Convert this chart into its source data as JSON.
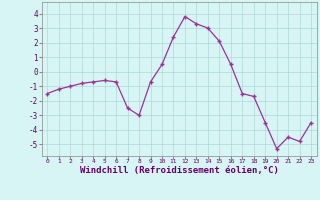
{
  "x": [
    0,
    1,
    2,
    3,
    4,
    5,
    6,
    7,
    8,
    9,
    10,
    11,
    12,
    13,
    14,
    15,
    16,
    17,
    18,
    19,
    20,
    21,
    22,
    23
  ],
  "y": [
    -1.5,
    -1.2,
    -1.0,
    -0.8,
    -0.7,
    -0.6,
    -0.7,
    -2.5,
    -3.0,
    -0.7,
    0.5,
    2.4,
    3.8,
    3.3,
    3.0,
    2.1,
    0.5,
    -1.5,
    -1.7,
    -3.5,
    -5.3,
    -4.5,
    -4.8,
    -3.5
  ],
  "line_color": "#993399",
  "marker": "+",
  "markersize": 3,
  "bg_color": "#d8f5f5",
  "grid_color": "#b0d8d8",
  "xlabel": "Windchill (Refroidissement éolien,°C)",
  "xlabel_fontsize": 6.5,
  "ylabel_ticks": [
    -5,
    -4,
    -3,
    -2,
    -1,
    0,
    1,
    2,
    3,
    4
  ],
  "xlim": [
    -0.5,
    23.5
  ],
  "ylim": [
    -5.8,
    4.8
  ],
  "xtick_labels": [
    "0",
    "1",
    "2",
    "3",
    "4",
    "5",
    "6",
    "7",
    "8",
    "9",
    "10",
    "11",
    "12",
    "13",
    "14",
    "15",
    "16",
    "17",
    "18",
    "19",
    "20",
    "21",
    "22",
    "23"
  ]
}
